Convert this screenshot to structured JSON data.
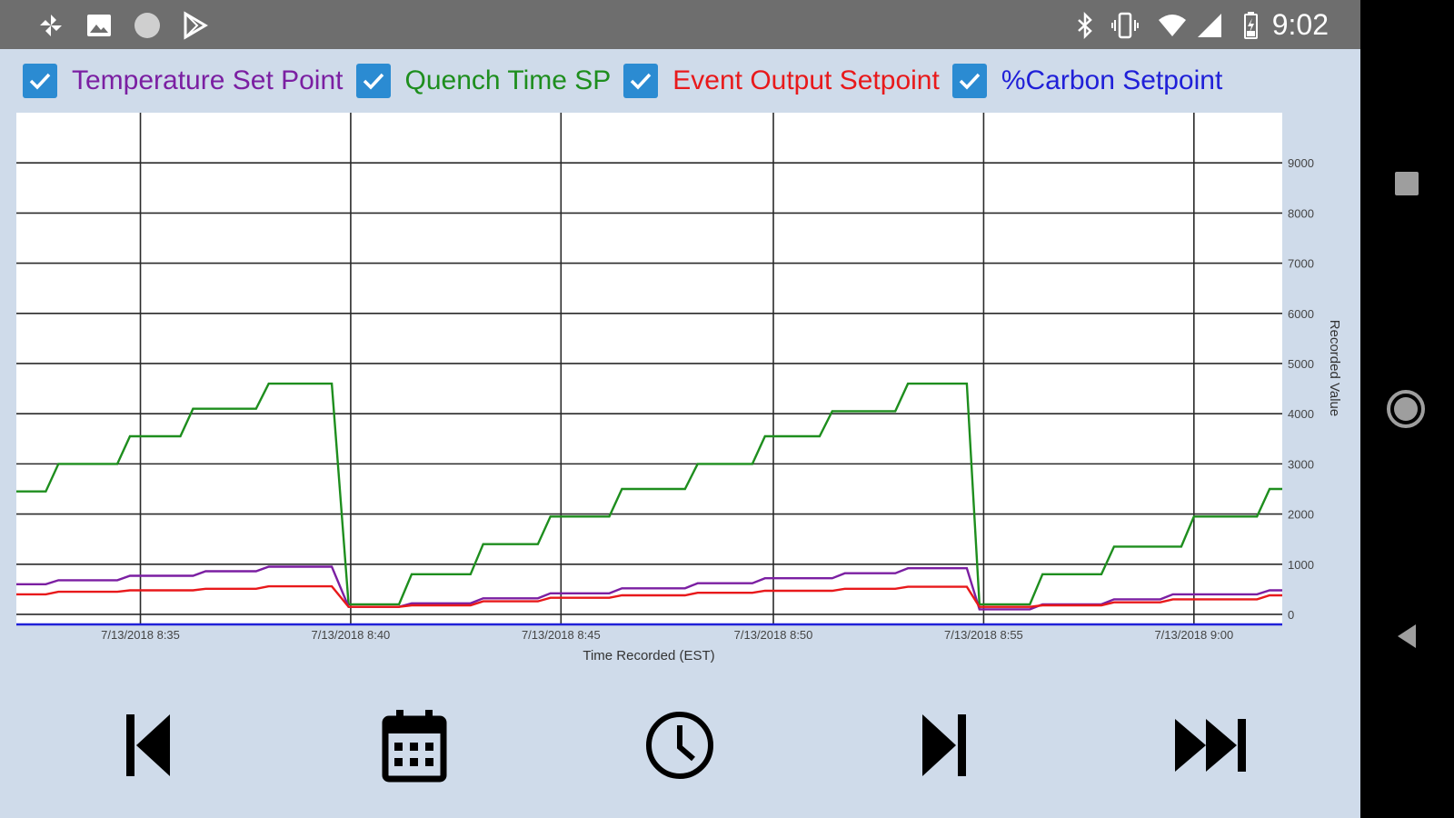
{
  "status_bar": {
    "time": "9:02",
    "left_icons": [
      "pinwheel-icon",
      "image-icon",
      "circle-icon",
      "play-store-icon"
    ],
    "right_icons": [
      "bluetooth-icon",
      "vibrate-icon",
      "wifi-icon",
      "cell-signal-icon",
      "battery-charging-icon"
    ]
  },
  "legend": [
    {
      "label": "Temperature Set Point",
      "color": "#7b1fa2",
      "checked": true
    },
    {
      "label": "Quench Time SP",
      "color": "#1e8e1e",
      "checked": true
    },
    {
      "label": "Event Output Setpoint",
      "color": "#e8191b",
      "checked": true
    },
    {
      "label": "%Carbon Setpoint",
      "color": "#2020d8",
      "checked": true
    }
  ],
  "toolbar": {
    "buttons": [
      "skip-previous-icon",
      "calendar-icon",
      "clock-icon",
      "skip-next-icon",
      "fast-forward-icon"
    ]
  },
  "nav_bar": {
    "buttons": [
      "recents-icon",
      "home-icon",
      "back-icon"
    ]
  },
  "chart_data": {
    "type": "line",
    "xlabel": "Time Recorded (EST)",
    "ylabel": "Recorded Value",
    "ylim": [
      -200,
      10000
    ],
    "xlim": [
      0,
      30.1
    ],
    "x_tick_labels": [
      "7/13/2018 8:35",
      "7/13/2018 8:40",
      "7/13/2018 8:45",
      "7/13/2018 8:50",
      "7/13/2018 8:55",
      "7/13/2018 9:00"
    ],
    "x_tick_positions_min": [
      2.95,
      7.95,
      12.95,
      18.0,
      23.0,
      28.0
    ],
    "y_ticks": [
      0,
      1000,
      2000,
      3000,
      4000,
      5000,
      6000,
      7000,
      8000,
      9000
    ],
    "grid": true,
    "series": [
      {
        "name": "Quench Time SP",
        "color": "#1e8e1e",
        "points": [
          [
            0,
            2450
          ],
          [
            0.7,
            2450
          ],
          [
            1.0,
            3000
          ],
          [
            2.4,
            3000
          ],
          [
            2.7,
            3550
          ],
          [
            3.9,
            3550
          ],
          [
            4.2,
            4100
          ],
          [
            5.7,
            4100
          ],
          [
            6.0,
            4600
          ],
          [
            7.5,
            4600
          ],
          [
            7.9,
            200
          ],
          [
            9.1,
            200
          ],
          [
            9.4,
            800
          ],
          [
            10.8,
            800
          ],
          [
            11.1,
            1400
          ],
          [
            12.4,
            1400
          ],
          [
            12.7,
            1950
          ],
          [
            14.1,
            1950
          ],
          [
            14.4,
            2500
          ],
          [
            15.9,
            2500
          ],
          [
            16.2,
            3000
          ],
          [
            17.5,
            3000
          ],
          [
            17.8,
            3550
          ],
          [
            19.1,
            3550
          ],
          [
            19.4,
            4050
          ],
          [
            20.9,
            4050
          ],
          [
            21.2,
            4600
          ],
          [
            22.6,
            4600
          ],
          [
            22.9,
            200
          ],
          [
            24.1,
            200
          ],
          [
            24.4,
            800
          ],
          [
            25.8,
            800
          ],
          [
            26.1,
            1350
          ],
          [
            27.7,
            1350
          ],
          [
            28.0,
            1950
          ],
          [
            29.5,
            1950
          ],
          [
            29.8,
            2500
          ],
          [
            30.1,
            2500
          ]
        ]
      },
      {
        "name": "Temperature Set Point",
        "color": "#7b1fa2",
        "points": [
          [
            0,
            600
          ],
          [
            0.7,
            600
          ],
          [
            1.0,
            680
          ],
          [
            2.4,
            680
          ],
          [
            2.7,
            770
          ],
          [
            4.2,
            770
          ],
          [
            4.5,
            860
          ],
          [
            5.7,
            860
          ],
          [
            6.0,
            950
          ],
          [
            7.5,
            950
          ],
          [
            7.9,
            150
          ],
          [
            9.1,
            150
          ],
          [
            9.4,
            220
          ],
          [
            10.8,
            220
          ],
          [
            11.1,
            320
          ],
          [
            12.4,
            320
          ],
          [
            12.7,
            420
          ],
          [
            14.1,
            420
          ],
          [
            14.4,
            520
          ],
          [
            15.9,
            520
          ],
          [
            16.2,
            620
          ],
          [
            17.5,
            620
          ],
          [
            17.8,
            720
          ],
          [
            19.4,
            720
          ],
          [
            19.7,
            820
          ],
          [
            20.9,
            820
          ],
          [
            21.2,
            920
          ],
          [
            22.6,
            920
          ],
          [
            22.9,
            100
          ],
          [
            24.1,
            100
          ],
          [
            24.4,
            200
          ],
          [
            25.8,
            200
          ],
          [
            26.1,
            300
          ],
          [
            27.2,
            300
          ],
          [
            27.5,
            400
          ],
          [
            29.5,
            400
          ],
          [
            29.8,
            480
          ],
          [
            30.1,
            480
          ]
        ]
      },
      {
        "name": "Event Output Setpoint",
        "color": "#e8191b",
        "points": [
          [
            0,
            400
          ],
          [
            0.7,
            400
          ],
          [
            1.0,
            450
          ],
          [
            2.4,
            450
          ],
          [
            2.7,
            480
          ],
          [
            4.2,
            480
          ],
          [
            4.5,
            510
          ],
          [
            5.7,
            510
          ],
          [
            6.0,
            560
          ],
          [
            7.5,
            560
          ],
          [
            7.9,
            150
          ],
          [
            9.1,
            150
          ],
          [
            9.4,
            180
          ],
          [
            10.8,
            180
          ],
          [
            11.1,
            260
          ],
          [
            12.4,
            260
          ],
          [
            12.7,
            330
          ],
          [
            14.1,
            330
          ],
          [
            14.4,
            380
          ],
          [
            15.9,
            380
          ],
          [
            16.2,
            430
          ],
          [
            17.5,
            430
          ],
          [
            17.8,
            470
          ],
          [
            19.4,
            470
          ],
          [
            19.7,
            510
          ],
          [
            20.9,
            510
          ],
          [
            21.2,
            550
          ],
          [
            22.6,
            550
          ],
          [
            22.9,
            150
          ],
          [
            24.1,
            150
          ],
          [
            24.4,
            180
          ],
          [
            25.8,
            180
          ],
          [
            26.1,
            240
          ],
          [
            27.2,
            240
          ],
          [
            27.5,
            300
          ],
          [
            29.5,
            300
          ],
          [
            29.8,
            380
          ],
          [
            30.1,
            380
          ]
        ]
      },
      {
        "name": "%Carbon Setpoint",
        "color": "#2020d8",
        "points": [
          [
            0,
            -200
          ],
          [
            30.1,
            -200
          ]
        ]
      }
    ]
  }
}
